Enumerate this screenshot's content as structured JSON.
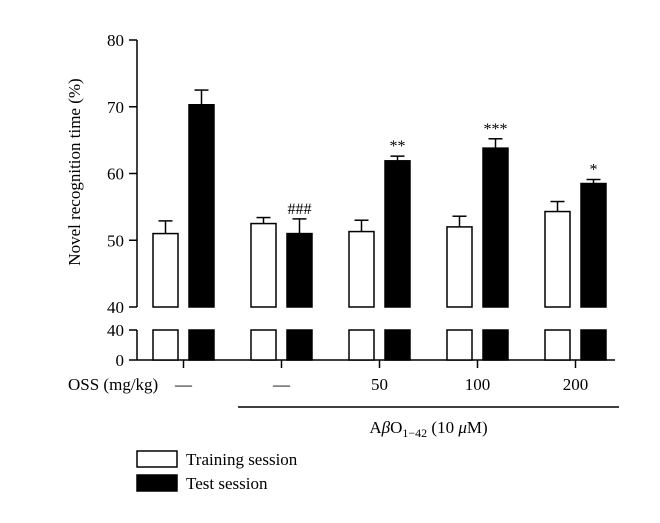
{
  "chart_data": {
    "type": "bar",
    "ylabel": "Novel recognition time (%)",
    "ylim": [
      40,
      80
    ],
    "lower_segment_ylim": [
      0,
      40
    ],
    "yticks_upper": [
      "80",
      "70",
      "60",
      "50",
      "40"
    ],
    "yticks_lower": [
      "40",
      "0"
    ],
    "axis_break": true,
    "grid": false,
    "legend_position": "bottom-left",
    "x_row_label": "OSS (mg/kg)",
    "categories": [
      "—",
      "—",
      "50",
      "100",
      "200"
    ],
    "group_label": "AβO₁₋₄₂ (10 μM)",
    "group_label_parts": [
      "A",
      "β",
      "O",
      "1−42",
      " (10 ",
      "μ",
      "M)"
    ],
    "group_spans_categories": [
      1,
      4
    ],
    "series": [
      {
        "name": "Training session",
        "color": "#ffffff",
        "values": [
          51.0,
          52.5,
          51.3,
          52.0,
          54.3
        ],
        "errors": [
          1.9,
          0.9,
          1.7,
          1.6,
          1.5
        ],
        "annotations": [
          "",
          "",
          "",
          "",
          ""
        ]
      },
      {
        "name": "Test session",
        "color": "#000000",
        "values": [
          70.3,
          51.0,
          61.9,
          63.8,
          58.5
        ],
        "errors": [
          2.2,
          2.2,
          0.7,
          1.4,
          0.6
        ],
        "annotations": [
          "",
          "###",
          "**",
          "***",
          "*"
        ]
      }
    ]
  }
}
